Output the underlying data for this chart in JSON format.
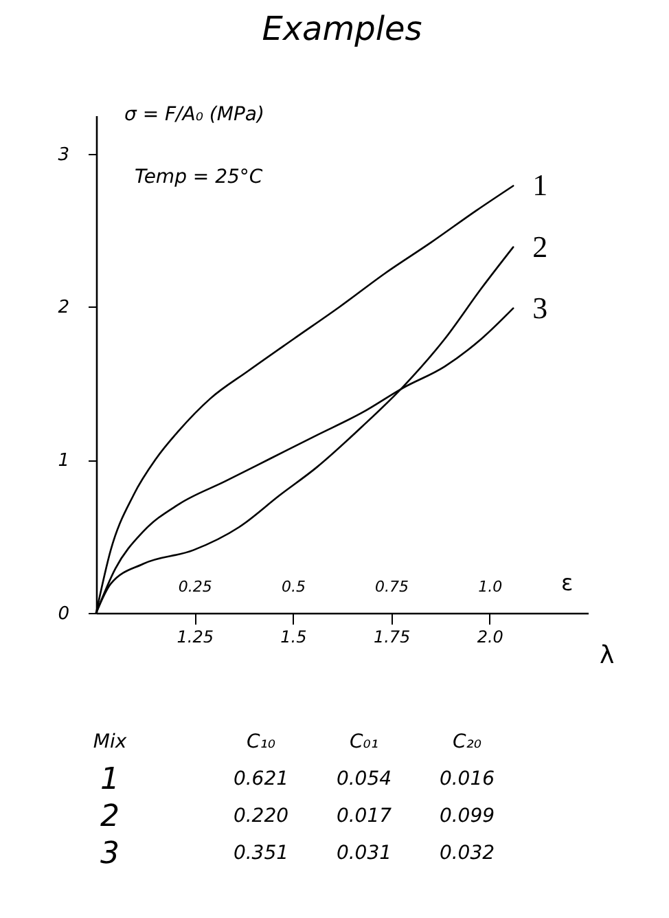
{
  "chart_data": [
    {
      "type": "line",
      "title": "Examples",
      "ylabel": "σ = F/A₀ (MPa)",
      "xlabel": "λ",
      "x2label": "ε",
      "annotations": [
        "Temp = 25°C"
      ],
      "xlim": [
        1,
        2.25
      ],
      "xticks": [
        1.25,
        1.5,
        1.75,
        {
          "value": 2,
          "label": "2.0"
        }
      ],
      "x2lim": [
        0,
        1.25
      ],
      "x2ticks": [
        0.25,
        0.5,
        0.75,
        {
          "value": 1,
          "label": "1.0"
        }
      ],
      "ylim": [
        0,
        3.25
      ],
      "yticks": [
        0,
        1,
        2,
        3
      ],
      "grid": false,
      "legend": false,
      "series": [
        {
          "name": "1",
          "color": "#000000",
          "x": [
            1,
            1.037,
            1.095,
            1.153,
            1.21,
            1.29,
            1.386,
            1.502,
            1.619,
            1.735,
            1.851,
            1.967,
            2.06
          ],
          "values": [
            0,
            0.41,
            0.77,
            1.01,
            1.19,
            1.4,
            1.58,
            1.79,
            2.0,
            2.22,
            2.42,
            2.63,
            2.79
          ]
        },
        {
          "name": "2",
          "color": "#000000",
          "x": [
            1,
            1.037,
            1.119,
            1.247,
            1.363,
            1.467,
            1.56,
            1.677,
            1.781,
            1.886,
            1.979,
            2.06
          ],
          "values": [
            0,
            0.19,
            0.32,
            0.41,
            0.56,
            0.77,
            0.95,
            1.22,
            1.48,
            1.79,
            2.12,
            2.39
          ]
        },
        {
          "name": "3",
          "color": "#000000",
          "x": [
            1,
            1.049,
            1.119,
            1.21,
            1.328,
            1.444,
            1.56,
            1.677,
            1.78,
            1.886,
            1.979,
            2.06
          ],
          "values": [
            0,
            0.29,
            0.53,
            0.71,
            0.86,
            1.01,
            1.16,
            1.31,
            1.47,
            1.61,
            1.79,
            1.99
          ]
        }
      ]
    },
    {
      "type": "other",
      "annotations": [
        "Mix",
        "C₁₀",
        "C₀₁",
        "C₂₀",
        "1",
        "0.621",
        "0.054",
        "0.016",
        "2",
        "0.220",
        "0.017",
        "0.099",
        "3",
        "0.351",
        "0.031",
        "0.032"
      ]
    }
  ]
}
